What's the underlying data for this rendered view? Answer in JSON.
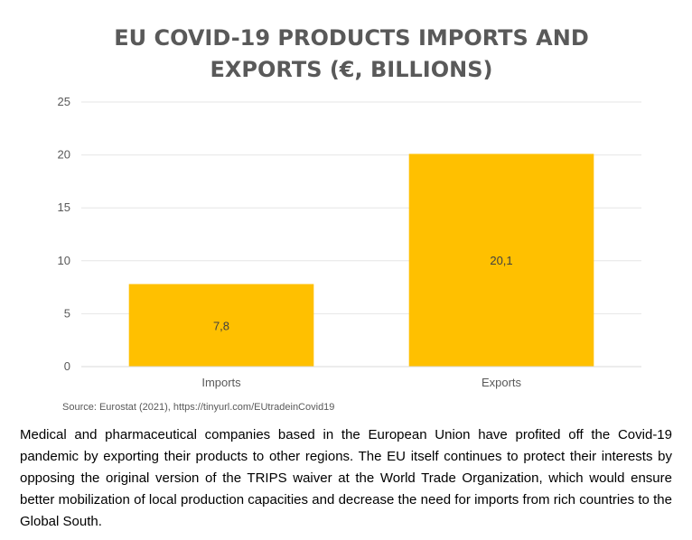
{
  "chart_data": {
    "type": "bar",
    "title": "EU COVID-19 PRODUCTS IMPORTS AND EXPORTS (€, BILLIONS)",
    "title_lines": [
      "EU COVID-19 PRODUCTS IMPORTS AND",
      "EXPORTS (€, BILLIONS)"
    ],
    "categories": [
      "Imports",
      "Exports"
    ],
    "values": [
      7.8,
      20.1
    ],
    "data_labels": [
      "7,8",
      "20,1"
    ],
    "ylim": [
      0,
      25
    ],
    "yticks": [
      0,
      5,
      10,
      15,
      20,
      25
    ],
    "xlabel": "",
    "ylabel": "",
    "grid": true,
    "legend": "none",
    "bar_color": "#FFC000"
  },
  "source_note": "Source: Eurostat (2021), https://tinyurl.com/EUtradeinCovid19",
  "body_text": "Medical and pharmaceutical companies based in the European Union have profited off the Covid-19 pandemic by exporting their products to other regions. The EU itself continues to protect their interests by opposing the original version of the TRIPS waiver at the World Trade Organization, which would ensure better mobilization of local production capacities and decrease the need for imports from rich countries to the Global South."
}
